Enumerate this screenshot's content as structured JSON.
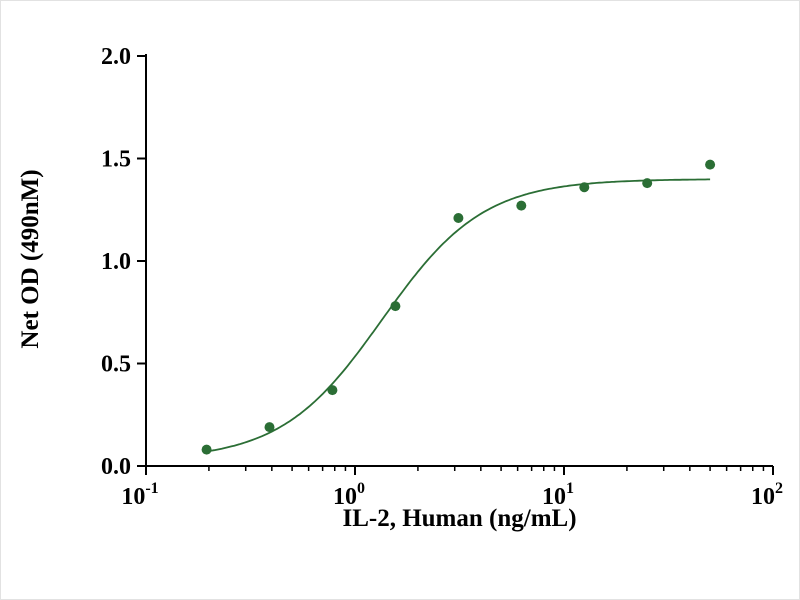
{
  "figure": {
    "description": "Dose-response bioactivity curve"
  },
  "chart_data": {
    "type": "scatter",
    "title": "",
    "xlabel": "IL-2, Human (ng/mL)",
    "ylabel": "Net OD (490nM)",
    "x_scale": "log10",
    "xlim": [
      0.1,
      100
    ],
    "ylim": [
      0.0,
      2.0
    ],
    "grid": false,
    "legend": null,
    "x": [
      0.195,
      0.39,
      0.78,
      1.56,
      3.125,
      6.25,
      12.5,
      25,
      50
    ],
    "y": [
      0.08,
      0.19,
      0.37,
      0.78,
      1.21,
      1.27,
      1.36,
      1.38,
      1.47
    ],
    "y_ticks": [
      0.0,
      0.5,
      1.0,
      1.5,
      2.0
    ],
    "y_tick_labels": [
      "0.0",
      "0.5",
      "1.0",
      "1.5",
      "2.0"
    ],
    "x_ticks": [
      0.1,
      1,
      10,
      100
    ],
    "x_tick_exponents": [
      -1,
      0,
      1,
      2
    ],
    "x_tick_labels": [
      "10⁻¹",
      "10⁰",
      "10¹",
      "10²"
    ],
    "curve_fit": {
      "model": "4PL",
      "bottom": 0.03,
      "top": 1.4,
      "ec50": 1.35,
      "hill": 1.8
    },
    "marker_color": "#2b6e35",
    "line_color": "#2b6e35",
    "axis_color": "#000000"
  }
}
